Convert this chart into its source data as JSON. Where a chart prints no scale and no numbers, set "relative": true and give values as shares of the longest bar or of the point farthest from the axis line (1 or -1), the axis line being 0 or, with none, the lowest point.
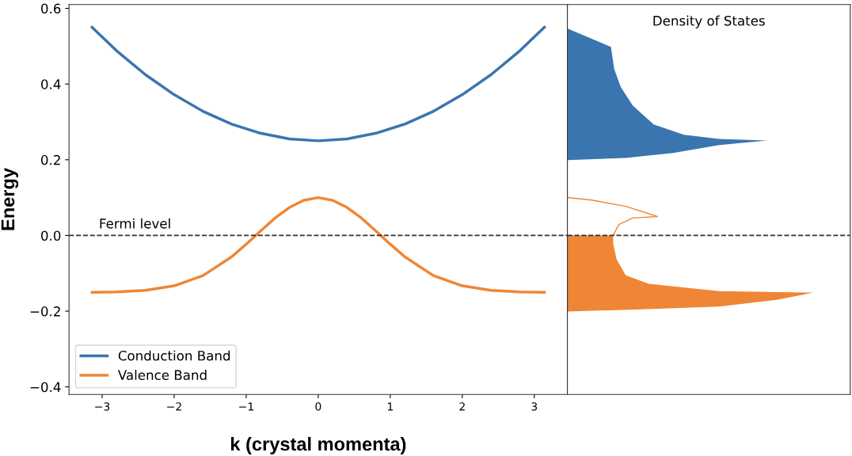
{
  "chart_data": [
    {
      "type": "line",
      "xlabel": "k (crystal momenta)",
      "ylabel": "Energy",
      "xlim": [
        -3.46,
        3.46
      ],
      "xticks": [
        {
          "value": -3,
          "label": "−3"
        },
        {
          "value": -2,
          "label": "−2"
        },
        {
          "value": -1,
          "label": "−1"
        },
        0,
        1,
        2,
        3
      ],
      "ylim": [
        -0.42,
        0.61
      ],
      "yticks": [
        {
          "value": -0.4,
          "label": "−0.4"
        },
        {
          "value": -0.2,
          "label": "−0.2"
        },
        {
          "value": 0,
          "label": "0.0"
        },
        0.2,
        0.4,
        0.6
      ],
      "legend": "lower left",
      "grid": false,
      "ref_lines": [
        {
          "axis": "y",
          "value": 0,
          "label": "Fermi level",
          "color": "#333333",
          "line_style": "dashed"
        }
      ],
      "series": [
        {
          "name": "Conduction Band",
          "color": "#3a75af",
          "x": [
            -3.14,
            -2.8,
            -2.4,
            -2.0,
            -1.6,
            -1.2,
            -0.8,
            -0.4,
            0,
            0.4,
            0.8,
            1.2,
            1.6,
            2.0,
            2.4,
            2.8,
            3.14
          ],
          "values": [
            0.55,
            0.488,
            0.425,
            0.372,
            0.328,
            0.294,
            0.27,
            0.255,
            0.25,
            0.255,
            0.27,
            0.294,
            0.328,
            0.372,
            0.425,
            0.488,
            0.55
          ]
        },
        {
          "name": "Valence Band",
          "color": "#ef8636",
          "x": [
            -3.14,
            -2.8,
            -2.4,
            -2.0,
            -1.6,
            -1.2,
            -1.0,
            -0.8,
            -0.6,
            -0.4,
            -0.2,
            0,
            0.2,
            0.4,
            0.6,
            0.8,
            1.0,
            1.2,
            1.6,
            2.0,
            2.4,
            2.8,
            3.14
          ],
          "values": [
            -0.15,
            -0.149,
            -0.145,
            -0.133,
            -0.106,
            -0.056,
            -0.023,
            0.012,
            0.046,
            0.074,
            0.093,
            0.1,
            0.093,
            0.074,
            0.046,
            0.012,
            -0.023,
            -0.056,
            -0.106,
            -0.133,
            -0.145,
            -0.149,
            -0.15
          ]
        }
      ]
    },
    {
      "type": "area",
      "title": "Density of States",
      "orientation": "horizontal",
      "relative": true,
      "ylim": [
        -0.42,
        0.61
      ],
      "yticks": [
        -0.4,
        -0.2,
        0,
        0.2,
        0.4,
        0.6
      ],
      "tick_labels": false,
      "ref_lines": [
        {
          "axis": "y",
          "value": 0,
          "color": "#333333",
          "line_style": "dashed"
        }
      ],
      "series": [
        {
          "color": "#3a75af",
          "x": [
            0.199,
            0.205,
            0.218,
            0.239,
            0.251,
            0.255,
            0.266,
            0.293,
            0.343,
            0.392,
            0.44,
            0.498,
            0.547
          ],
          "values": [
            0,
            0.237,
            0.429,
            0.617,
            0.811,
            0.617,
            0.474,
            0.351,
            0.266,
            0.217,
            0.19,
            0.177,
            0
          ]
        },
        {
          "color": "#ef8636",
          "x": [
            -0.201,
            -0.195,
            -0.188,
            -0.17,
            -0.151,
            -0.147,
            -0.128,
            -0.105,
            -0.063,
            -0.021,
            0.0
          ],
          "values": [
            0,
            0.3,
            0.617,
            0.85,
            1.0,
            0.617,
            0.331,
            0.237,
            0.2,
            0.186,
            0.186
          ]
        },
        {
          "type": "line",
          "color": "#ef8636",
          "x": [
            0.0,
            0.029,
            0.046,
            0.05,
            0.077,
            0.094,
            0.1
          ],
          "values": [
            0.186,
            0.209,
            0.266,
            0.366,
            0.237,
            0.094,
            0
          ]
        }
      ]
    }
  ]
}
